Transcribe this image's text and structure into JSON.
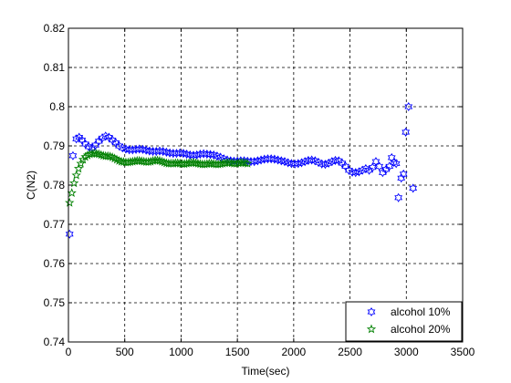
{
  "chart_data": {
    "type": "scatter",
    "xlabel": "Time(sec)",
    "ylabel": "C(N2)",
    "xlim": [
      0,
      3500
    ],
    "ylim": [
      0.74,
      0.82
    ],
    "xticks": [
      0,
      500,
      1000,
      1500,
      2000,
      2500,
      3000,
      3500
    ],
    "xtick_labels": [
      "0",
      "500",
      "1000",
      "1500",
      "2000",
      "2500",
      "3000",
      "3500"
    ],
    "yticks": [
      0.74,
      0.75,
      0.76,
      0.77,
      0.78,
      0.79,
      0.8,
      0.81,
      0.82
    ],
    "ytick_labels": [
      "0.74",
      "0.75",
      "0.76",
      "0.77",
      "0.78",
      "0.79",
      "0.8",
      "0.81",
      "0.82"
    ],
    "grid": true,
    "legend_position": "bottom-right",
    "series": [
      {
        "name": "alcohol 10%",
        "color": "#0000ff",
        "marker": "hexagram",
        "points": [
          [
            10,
            0.7675
          ],
          [
            40,
            0.7875
          ],
          [
            70,
            0.7918
          ],
          [
            95,
            0.7922
          ],
          [
            120,
            0.7915
          ],
          [
            150,
            0.7905
          ],
          [
            180,
            0.7898
          ],
          [
            210,
            0.7895
          ],
          [
            240,
            0.7902
          ],
          [
            270,
            0.7912
          ],
          [
            300,
            0.792
          ],
          [
            330,
            0.7925
          ],
          [
            360,
            0.7922
          ],
          [
            390,
            0.7915
          ],
          [
            420,
            0.7908
          ],
          [
            450,
            0.79
          ],
          [
            480,
            0.7895
          ],
          [
            510,
            0.7892
          ],
          [
            540,
            0.789
          ],
          [
            570,
            0.789
          ],
          [
            600,
            0.7891
          ],
          [
            630,
            0.7892
          ],
          [
            660,
            0.7891
          ],
          [
            690,
            0.7889
          ],
          [
            720,
            0.7887
          ],
          [
            750,
            0.7886
          ],
          [
            780,
            0.7886
          ],
          [
            810,
            0.7887
          ],
          [
            840,
            0.7886
          ],
          [
            870,
            0.7884
          ],
          [
            900,
            0.7882
          ],
          [
            930,
            0.7881
          ],
          [
            960,
            0.7881
          ],
          [
            990,
            0.7882
          ],
          [
            1020,
            0.7881
          ],
          [
            1050,
            0.7879
          ],
          [
            1080,
            0.7877
          ],
          [
            1110,
            0.7876
          ],
          [
            1140,
            0.7877
          ],
          [
            1170,
            0.7879
          ],
          [
            1200,
            0.788
          ],
          [
            1230,
            0.7879
          ],
          [
            1260,
            0.7878
          ],
          [
            1290,
            0.7877
          ],
          [
            1320,
            0.7874
          ],
          [
            1350,
            0.7871
          ],
          [
            1380,
            0.7867
          ],
          [
            1410,
            0.7864
          ],
          [
            1440,
            0.7862
          ],
          [
            1470,
            0.7861
          ],
          [
            1500,
            0.7861
          ],
          [
            1530,
            0.7862
          ],
          [
            1560,
            0.7862
          ],
          [
            1590,
            0.7861
          ],
          [
            1620,
            0.786
          ],
          [
            1650,
            0.786
          ],
          [
            1680,
            0.7862
          ],
          [
            1710,
            0.7864
          ],
          [
            1740,
            0.7866
          ],
          [
            1770,
            0.7867
          ],
          [
            1800,
            0.7867
          ],
          [
            1830,
            0.7866
          ],
          [
            1860,
            0.7864
          ],
          [
            1890,
            0.7862
          ],
          [
            1920,
            0.786
          ],
          [
            1950,
            0.7857
          ],
          [
            1980,
            0.7855
          ],
          [
            2010,
            0.7854
          ],
          [
            2040,
            0.7855
          ],
          [
            2070,
            0.7857
          ],
          [
            2100,
            0.786
          ],
          [
            2130,
            0.7863
          ],
          [
            2160,
            0.7864
          ],
          [
            2190,
            0.7862
          ],
          [
            2220,
            0.7858
          ],
          [
            2250,
            0.7854
          ],
          [
            2280,
            0.7853
          ],
          [
            2310,
            0.7856
          ],
          [
            2340,
            0.786
          ],
          [
            2370,
            0.7863
          ],
          [
            2400,
            0.7862
          ],
          [
            2430,
            0.7856
          ],
          [
            2460,
            0.7848
          ],
          [
            2490,
            0.7838
          ],
          [
            2520,
            0.7833
          ],
          [
            2550,
            0.7832
          ],
          [
            2580,
            0.7834
          ],
          [
            2610,
            0.7838
          ],
          [
            2640,
            0.7842
          ],
          [
            2670,
            0.7838
          ],
          [
            2700,
            0.7845
          ],
          [
            2730,
            0.786
          ],
          [
            2760,
            0.7848
          ],
          [
            2790,
            0.7832
          ],
          [
            2820,
            0.784
          ],
          [
            2850,
            0.7848
          ],
          [
            2870,
            0.787
          ],
          [
            2890,
            0.7858
          ],
          [
            2910,
            0.7855
          ],
          [
            2930,
            0.7768
          ],
          [
            2955,
            0.7818
          ],
          [
            2975,
            0.7828
          ],
          [
            2995,
            0.7935
          ],
          [
            3020,
            0.8
          ],
          [
            3060,
            0.7792
          ]
        ]
      },
      {
        "name": "alcohol 20%",
        "color": "#008000",
        "marker": "pentagram",
        "points": [
          [
            10,
            0.7755
          ],
          [
            30,
            0.778
          ],
          [
            50,
            0.7805
          ],
          [
            70,
            0.7825
          ],
          [
            90,
            0.7842
          ],
          [
            110,
            0.7855
          ],
          [
            130,
            0.7865
          ],
          [
            150,
            0.7872
          ],
          [
            170,
            0.7876
          ],
          [
            190,
            0.7879
          ],
          [
            210,
            0.788
          ],
          [
            230,
            0.7881
          ],
          [
            250,
            0.788
          ],
          [
            270,
            0.7879
          ],
          [
            290,
            0.7877
          ],
          [
            310,
            0.7875
          ],
          [
            330,
            0.7874
          ],
          [
            350,
            0.7874
          ],
          [
            370,
            0.7873
          ],
          [
            390,
            0.7871
          ],
          [
            410,
            0.7868
          ],
          [
            430,
            0.7865
          ],
          [
            450,
            0.7862
          ],
          [
            470,
            0.786
          ],
          [
            490,
            0.7859
          ],
          [
            510,
            0.7858
          ],
          [
            530,
            0.7858
          ],
          [
            550,
            0.7859
          ],
          [
            570,
            0.786
          ],
          [
            590,
            0.7861
          ],
          [
            610,
            0.7862
          ],
          [
            630,
            0.7862
          ],
          [
            650,
            0.7861
          ],
          [
            670,
            0.786
          ],
          [
            690,
            0.7859
          ],
          [
            710,
            0.7859
          ],
          [
            730,
            0.786
          ],
          [
            750,
            0.7862
          ],
          [
            770,
            0.7863
          ],
          [
            790,
            0.7863
          ],
          [
            810,
            0.7862
          ],
          [
            830,
            0.786
          ],
          [
            850,
            0.7858
          ],
          [
            870,
            0.7856
          ],
          [
            890,
            0.7855
          ],
          [
            910,
            0.7855
          ],
          [
            930,
            0.7855
          ],
          [
            950,
            0.7856
          ],
          [
            970,
            0.7856
          ],
          [
            990,
            0.7855
          ],
          [
            1010,
            0.7854
          ],
          [
            1030,
            0.7854
          ],
          [
            1050,
            0.7855
          ],
          [
            1070,
            0.7856
          ],
          [
            1090,
            0.7857
          ],
          [
            1110,
            0.7857
          ],
          [
            1130,
            0.7856
          ],
          [
            1150,
            0.7855
          ],
          [
            1170,
            0.7854
          ],
          [
            1190,
            0.7853
          ],
          [
            1210,
            0.7853
          ],
          [
            1230,
            0.7854
          ],
          [
            1250,
            0.7855
          ],
          [
            1270,
            0.7855
          ],
          [
            1290,
            0.7854
          ],
          [
            1310,
            0.7853
          ],
          [
            1330,
            0.7853
          ],
          [
            1350,
            0.7854
          ],
          [
            1370,
            0.7855
          ],
          [
            1390,
            0.7856
          ],
          [
            1410,
            0.7857
          ],
          [
            1430,
            0.7857
          ],
          [
            1450,
            0.7856
          ],
          [
            1470,
            0.7855
          ],
          [
            1490,
            0.7855
          ],
          [
            1510,
            0.7856
          ],
          [
            1530,
            0.7857
          ],
          [
            1550,
            0.7857
          ],
          [
            1570,
            0.7856
          ],
          [
            1590,
            0.7855
          ]
        ]
      }
    ]
  }
}
